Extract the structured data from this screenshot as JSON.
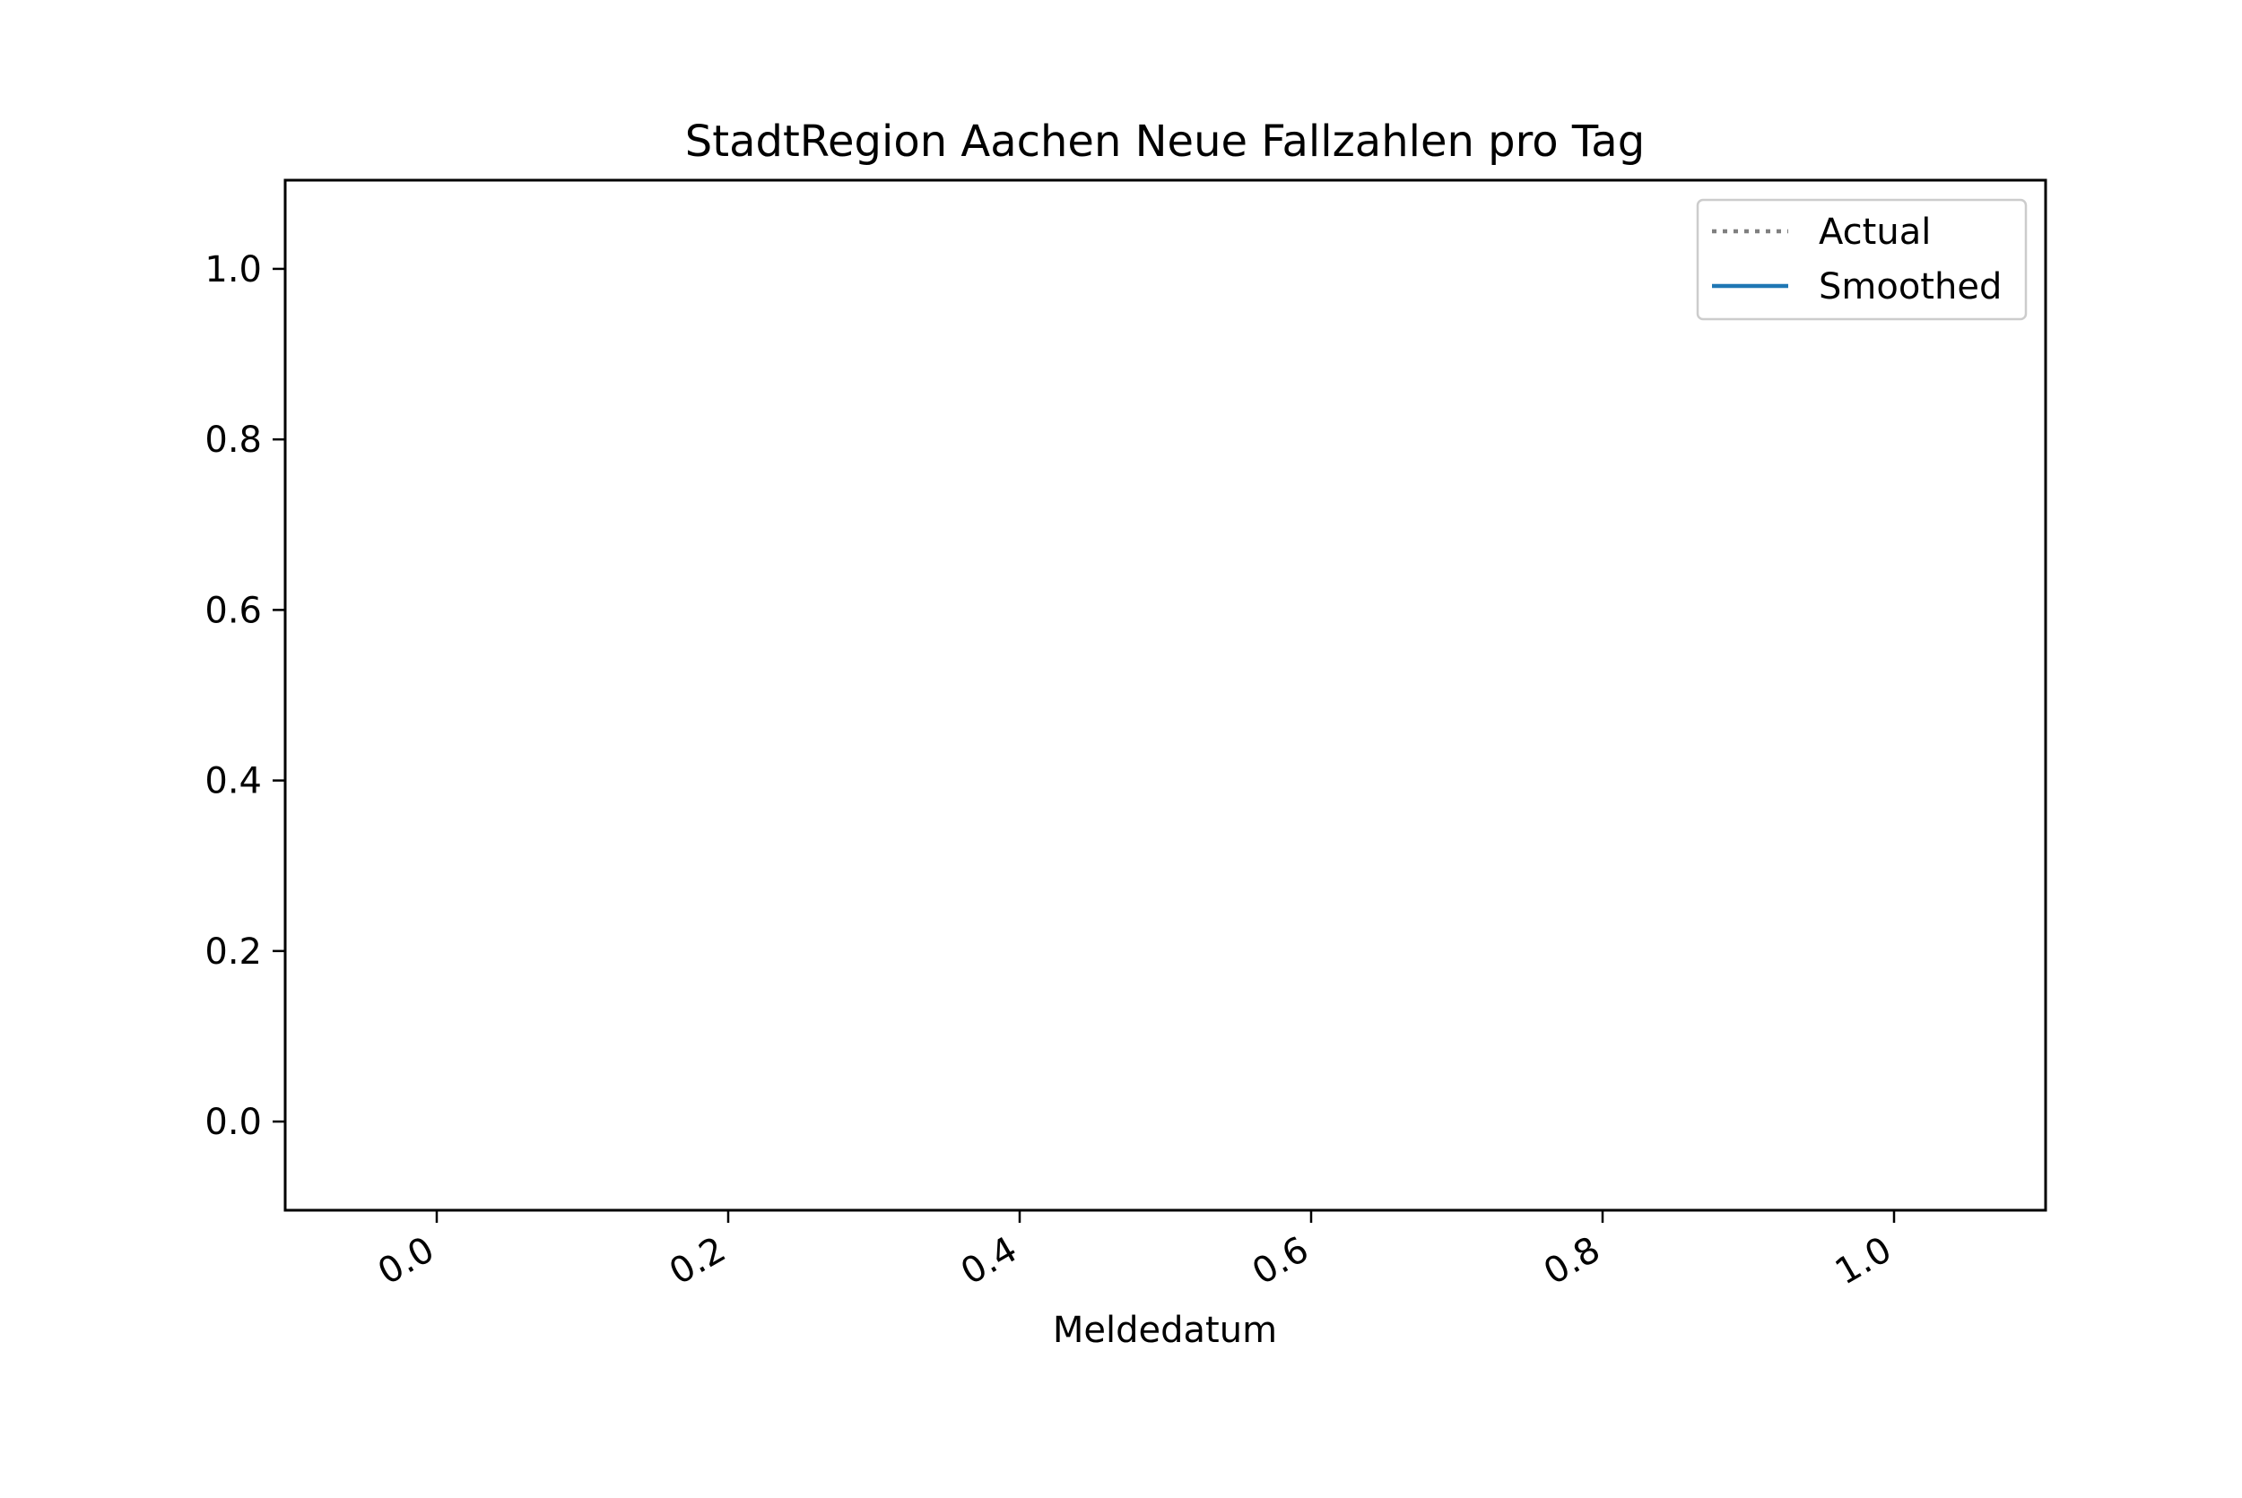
{
  "chart_data": {
    "type": "line",
    "title": "StadtRegion Aachen Neue Fallzahlen pro Tag",
    "xlabel": "Meldedatum",
    "ylabel": "",
    "xlim": [
      -0.104,
      1.104
    ],
    "ylim": [
      -0.104,
      1.104
    ],
    "x_ticks": [
      0.0,
      0.2,
      0.4,
      0.6,
      0.8,
      1.0
    ],
    "x_tick_labels": [
      "0.0",
      "0.2",
      "0.4",
      "0.6",
      "0.8",
      "1.0"
    ],
    "y_ticks": [
      0.0,
      0.2,
      0.4,
      0.6,
      0.8,
      1.0
    ],
    "y_tick_labels": [
      "0.0",
      "0.2",
      "0.4",
      "0.6",
      "0.8",
      "1.0"
    ],
    "grid": false,
    "legend_position": "top-right",
    "series": [
      {
        "name": "Actual",
        "style": "dotted",
        "color": "#7f7f7f",
        "x": [],
        "y": []
      },
      {
        "name": "Smoothed",
        "style": "solid",
        "color": "#1f77b4",
        "x": [],
        "y": []
      }
    ]
  }
}
